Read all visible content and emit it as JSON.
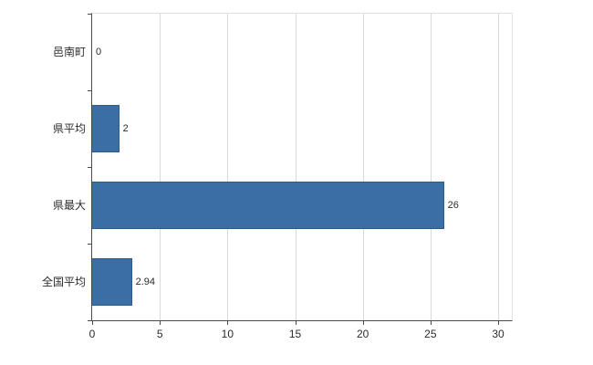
{
  "chart_data": {
    "type": "bar",
    "orientation": "horizontal",
    "title": "",
    "categories": [
      "邑南町",
      "県平均",
      "県最大",
      "全国平均"
    ],
    "values": [
      0,
      2,
      26,
      2.94
    ],
    "value_labels": [
      "0",
      "2",
      "26",
      "2.94"
    ],
    "xlim": [
      0,
      30
    ],
    "xticks": [
      0,
      5,
      10,
      15,
      20,
      25,
      30
    ],
    "xtick_labels": [
      "0",
      "5",
      "10",
      "15",
      "20",
      "25",
      "30"
    ],
    "grid": true,
    "legend": "none",
    "colors": {
      "bar_fill": "#3a6ea5",
      "bar_border": "#2e5a8c",
      "gridline": "#d9d9d9",
      "axis": "#4a4a4a",
      "text": "#2b2b2b",
      "background": "#ffffff"
    }
  }
}
